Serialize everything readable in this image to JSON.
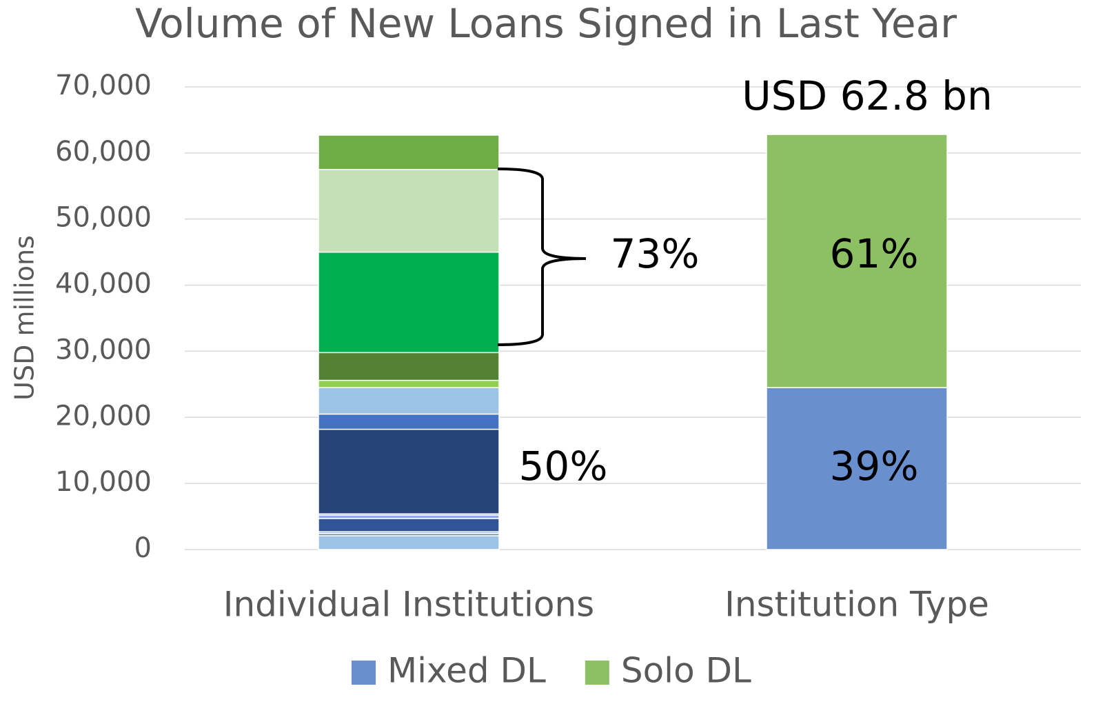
{
  "chart_data": {
    "type": "stacked_bar",
    "title": "Volume of New Loans Signed in Last Year",
    "y_label": "USD millions",
    "categories": [
      "Individual Institutions",
      "Institution Type"
    ],
    "series": [
      {
        "color": "#9dc3e6",
        "values": [
          2100,
          null
        ]
      },
      {
        "color": "#4472c4",
        "values": [
          300,
          null
        ]
      },
      {
        "color": "#9dc3e6",
        "values": [
          300,
          null
        ]
      },
      {
        "color": "#2f5597",
        "values": [
          2000,
          null
        ]
      },
      {
        "color": "#8faadc",
        "values": [
          500,
          null
        ]
      },
      {
        "color": "#4472c4",
        "values": [
          200,
          null
        ]
      },
      {
        "color": "#264478",
        "values": [
          12800,
          null
        ]
      },
      {
        "color": "#4472c4",
        "values": [
          2300,
          null
        ]
      },
      {
        "color": "#9dc3e6",
        "values": [
          4000,
          null
        ]
      },
      {
        "color": "#92d050",
        "values": [
          1100,
          null
        ]
      },
      {
        "color": "#548235",
        "values": [
          4200,
          null
        ]
      },
      {
        "color": "#00b050",
        "values": [
          15200,
          null
        ]
      },
      {
        "color": "#c5e0b4",
        "values": [
          12500,
          null
        ]
      },
      {
        "color": "#70ad47",
        "values": [
          5200,
          null
        ]
      },
      {
        "name": "Mixed DL",
        "color": "#6a8fcf",
        "values": [
          null,
          24500
        ]
      },
      {
        "name": "Solo DL",
        "color": "#8cc063",
        "values": [
          null,
          38300
        ]
      }
    ],
    "ylim": [
      0,
      70000
    ],
    "yticks": [
      0,
      {
        "value": 10000,
        "label": "10,000"
      },
      {
        "value": 20000,
        "label": "20,000"
      },
      {
        "value": 30000,
        "label": "30,000"
      },
      {
        "value": 40000,
        "label": "40,000"
      },
      {
        "value": 50000,
        "label": "50,000"
      },
      {
        "value": 60000,
        "label": "60,000"
      },
      {
        "value": 70000,
        "label": "70,000"
      }
    ],
    "grid": true,
    "legend": "bottom",
    "annotations": [
      "USD 62.8 bn",
      "73%",
      "50%",
      "61%",
      "39%"
    ]
  }
}
